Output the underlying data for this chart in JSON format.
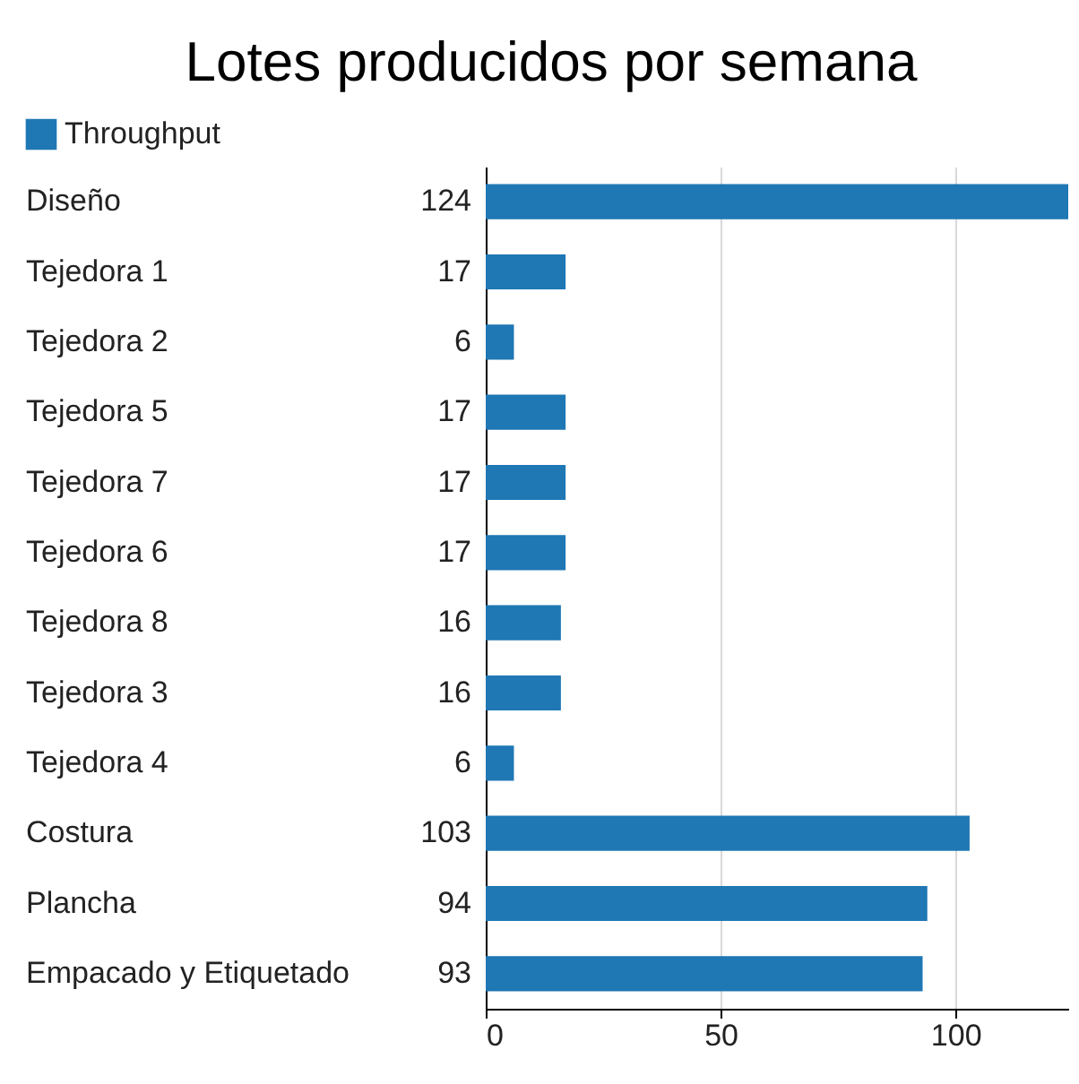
{
  "chart_data": {
    "type": "bar",
    "orientation": "horizontal",
    "title": "Lotes producidos por semana",
    "categories": [
      "Diseño",
      "Tejedora 1",
      "Tejedora 2",
      "Tejedora 5",
      "Tejedora 7",
      "Tejedora 6",
      "Tejedora 8",
      "Tejedora 3",
      "Tejedora 4",
      "Costura",
      "Plancha",
      "Empacado y Etiquetado"
    ],
    "series": [
      {
        "name": "Throughput",
        "color": "#1f77b4",
        "values": [
          124,
          17,
          6,
          17,
          17,
          17,
          16,
          16,
          6,
          103,
          94,
          93
        ]
      }
    ],
    "xlim": [
      0,
      124
    ],
    "xticks": [
      0,
      50,
      100
    ],
    "grid": "x",
    "legend": "top left",
    "data_labels": true
  }
}
